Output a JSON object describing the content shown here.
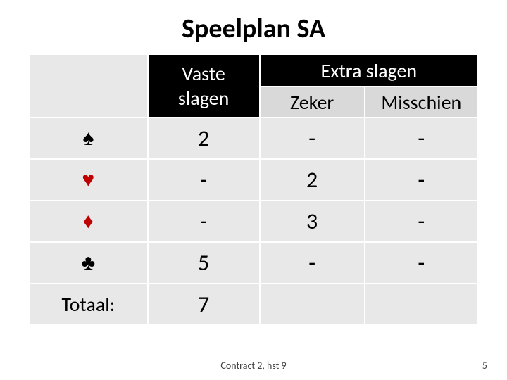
{
  "title": "Speelplan SA",
  "headers": {
    "vaste_line1": "Vaste",
    "vaste_line2": "slagen",
    "extra": "Extra slagen",
    "zeker": "Zeker",
    "misschien": "Misschien"
  },
  "suits": {
    "spade": {
      "glyph": "♠",
      "color": "#000000"
    },
    "heart": {
      "glyph": "♥",
      "color": "#c00000"
    },
    "diamond": {
      "glyph": "♦",
      "color": "#c00000"
    },
    "club": {
      "glyph": "♣",
      "color": "#000000"
    }
  },
  "rows": {
    "spade": {
      "vaste": "2",
      "zeker": "-",
      "misschien": "-"
    },
    "heart": {
      "vaste": "-",
      "zeker": "2",
      "misschien": "-"
    },
    "diamond": {
      "vaste": "-",
      "zeker": "3",
      "misschien": "-"
    },
    "club": {
      "vaste": "5",
      "zeker": "-",
      "misschien": "-"
    },
    "totaal": {
      "label": "Totaal:",
      "vaste": "7",
      "zeker": "",
      "misschien": ""
    }
  },
  "footer": {
    "center": "Contract 2, hst 9",
    "page": "5"
  },
  "style": {
    "title_fontsize": 38,
    "header_fontsize": 28,
    "cell_fontsize": 32,
    "suit_fontsize": 30,
    "footer_fontsize": 14,
    "colors": {
      "bg": "#ffffff",
      "header_black": "#000000",
      "header_gray": "#d9d9d9",
      "cell_gray": "#e8e8e8",
      "suit_red": "#c00000",
      "suit_black": "#000000",
      "text": "#000000",
      "footer_text": "#404040",
      "border": "#ffffff"
    }
  }
}
